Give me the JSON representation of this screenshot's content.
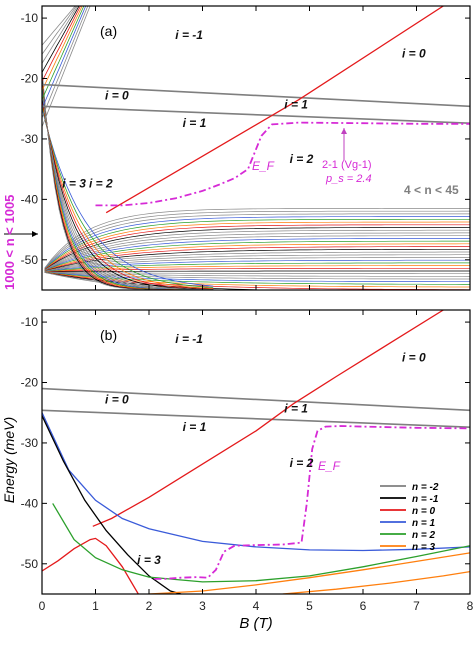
{
  "chart_data": [
    {
      "panel": "(a)",
      "type": "line",
      "xlim": [
        0,
        8
      ],
      "ylim": [
        -55,
        -8
      ],
      "yticks": [
        -50,
        -40,
        -30,
        -20,
        -10
      ],
      "ytick_labels": [
        "-50",
        "-40",
        "-30",
        "-20",
        "-10"
      ],
      "xticks": [
        0,
        1,
        2,
        3,
        4,
        5,
        6,
        7,
        8
      ],
      "xtick_labels": [],
      "side_label": "1000 < n < 1005",
      "annotation_levels": "4 < n < 45",
      "annotation_fermi": "2-1 (Vg-1)",
      "annotation_ps": "p_s = 2.4",
      "fermi_label": "E_F",
      "region_labels": [
        {
          "text": "i = -1",
          "x": 2.75,
          "y": -13.5
        },
        {
          "text": "i = 0",
          "x": 6.95,
          "y": -16.5
        },
        {
          "text": "i = 0",
          "x": 1.4,
          "y": -23.5
        },
        {
          "text": "i = 1",
          "x": 4.75,
          "y": -25.0
        },
        {
          "text": "i = 1",
          "x": 2.85,
          "y": -28.0
        },
        {
          "text": "i = 2",
          "x": 4.85,
          "y": -34.0
        },
        {
          "text": "i = 2",
          "x": 1.1,
          "y": -38.0
        },
        {
          "text": "i = 3",
          "x": 0.6,
          "y": -38.0
        }
      ],
      "series": [
        {
          "color": "#7f7f7f",
          "x": [
            0,
            8
          ],
          "y": [
            -21,
            -24.6
          ]
        },
        {
          "color": "#7f7f7f",
          "x": [
            0,
            8
          ],
          "y": [
            -24.6,
            -27.4
          ]
        },
        {
          "color": "#e41a1c",
          "x": [
            1.2,
            4.8,
            7.5
          ],
          "y": [
            -42.2,
            -23.5,
            -8
          ]
        },
        {
          "color": "#d62ad6",
          "dash": true,
          "x": [
            1.0,
            1.5,
            2.0,
            2.5,
            3.0,
            3.3,
            3.6,
            3.85,
            4.1,
            4.3,
            4.8,
            6.0,
            7.0,
            8.0
          ],
          "y": [
            -41.0,
            -41.0,
            -40.6,
            -39.8,
            -38.6,
            -37.6,
            -36.5,
            -35.0,
            -29.5,
            -27.6,
            -27.3,
            -27.4,
            -27.5,
            -27.5
          ]
        }
      ]
    },
    {
      "panel": "(b)",
      "type": "line",
      "xlim": [
        0,
        8
      ],
      "ylim": [
        -55,
        -8
      ],
      "yticks": [
        -50,
        -40,
        -30,
        -20,
        -10
      ],
      "ytick_labels": [
        "-50",
        "-40",
        "-30",
        "-20",
        "-10"
      ],
      "xticks": [
        0,
        1,
        2,
        3,
        4,
        5,
        6,
        7,
        8
      ],
      "xtick_labels": [
        "0",
        "1",
        "2",
        "3",
        "4",
        "5",
        "6",
        "7",
        "8"
      ],
      "xlabel": "B (T)",
      "ylabel": "Energy (meV)",
      "fermi_label": "E_F",
      "region_labels": [
        {
          "text": "i = -1",
          "x": 2.75,
          "y": -13.5
        },
        {
          "text": "i = 0",
          "x": 6.95,
          "y": -16.5
        },
        {
          "text": "i = 0",
          "x": 1.4,
          "y": -23.5
        },
        {
          "text": "i = 1",
          "x": 4.75,
          "y": -25.0
        },
        {
          "text": "i = 1",
          "x": 2.85,
          "y": -28.0
        },
        {
          "text": "i = 2",
          "x": 4.85,
          "y": -34.0
        },
        {
          "text": "i = 3",
          "x": 2.0,
          "y": -50.0
        }
      ],
      "legend": {
        "placement": "right",
        "entries": [
          {
            "label": "n = -2",
            "color": "#7f7f7f"
          },
          {
            "label": "n = -1",
            "color": "#000000"
          },
          {
            "label": "n = 0",
            "color": "#e41a1c"
          },
          {
            "label": "n = 1",
            "color": "#3a5bd9"
          },
          {
            "label": "n = 2",
            "color": "#2ca02c"
          },
          {
            "label": "n = 3",
            "color": "#ff7f0e"
          }
        ]
      },
      "series": [
        {
          "name": "n = -2",
          "color": "#7f7f7f",
          "x": [
            0,
            8
          ],
          "y": [
            -21,
            -24.6
          ]
        },
        {
          "name": "n = -2",
          "color": "#7f7f7f",
          "x": [
            0,
            8
          ],
          "y": [
            -24.6,
            -27.4
          ]
        },
        {
          "name": "n = 0",
          "color": "#e41a1c",
          "x": [
            0.95,
            1.3,
            2.0,
            3.0,
            4.0,
            4.7,
            5.5,
            6.5,
            7.5
          ],
          "y": [
            -43.8,
            -42.5,
            -39.0,
            -33.5,
            -28.0,
            -23.5,
            -19.0,
            -13.5,
            -8.0
          ]
        },
        {
          "name": "n = 0",
          "color": "#e41a1c",
          "x": [
            0,
            0.3,
            0.6,
            0.9,
            1.0,
            1.2,
            1.5,
            1.8
          ],
          "y": [
            -51.2,
            -49.5,
            -47.5,
            -46.0,
            -45.8,
            -47.0,
            -50.5,
            -55.0
          ]
        },
        {
          "name": "n = 1",
          "color": "#3a5bd9",
          "x": [
            0,
            0.5,
            1.0,
            1.5,
            2.0,
            3.0,
            4.0,
            5.0,
            6.0,
            7.0,
            8.0
          ],
          "y": [
            -25.0,
            -34.5,
            -39.5,
            -42.5,
            -44.2,
            -46.3,
            -47.2,
            -47.7,
            -47.8,
            -47.6,
            -47.2
          ]
        },
        {
          "name": "n = -1",
          "color": "#000000",
          "x": [
            0,
            0.4,
            0.8,
            1.2,
            1.6,
            2.0,
            2.4,
            2.6
          ],
          "y": [
            -25.5,
            -33.0,
            -39.5,
            -44.5,
            -48.5,
            -52.0,
            -54.5,
            -55.0
          ]
        },
        {
          "name": "n = 2",
          "color": "#2ca02c",
          "x": [
            0.2,
            0.6,
            1.0,
            1.5,
            2.0,
            3.0,
            4.0,
            5.0,
            6.0,
            7.0,
            8.0
          ],
          "y": [
            -40.0,
            -46.0,
            -49.0,
            -51.0,
            -52.2,
            -53.0,
            -52.8,
            -52.0,
            -50.5,
            -48.8,
            -47.0
          ]
        },
        {
          "name": "n = 3",
          "color": "#ff7f0e",
          "x": [
            2.0,
            3.0,
            4.0,
            5.0,
            6.0,
            7.0,
            8.0
          ],
          "y": [
            -55.0,
            -54.5,
            -53.5,
            -52.3,
            -51.0,
            -49.6,
            -48.2
          ]
        },
        {
          "name": "n = 3",
          "color": "#ff7f0e",
          "x": [
            4.5,
            5.5,
            6.5,
            7.5,
            8.0
          ],
          "y": [
            -55.0,
            -54.2,
            -53.2,
            -52.0,
            -51.3
          ]
        },
        {
          "color": "#d62ad6",
          "dash": true,
          "x": [
            2.1,
            2.3,
            2.6,
            2.9,
            3.1,
            3.25,
            3.4,
            3.6,
            4.0,
            4.5,
            4.85,
            4.95,
            5.05,
            5.15,
            5.3,
            5.6,
            6.0,
            7.0,
            8.0
          ],
          "y": [
            -52.5,
            -52.5,
            -52.3,
            -52.2,
            -52.3,
            -51.0,
            -48.0,
            -47.0,
            -46.9,
            -46.8,
            -46.5,
            -40.0,
            -31.0,
            -28.0,
            -27.3,
            -27.2,
            -27.3,
            -27.5,
            -27.6
          ]
        }
      ]
    }
  ]
}
